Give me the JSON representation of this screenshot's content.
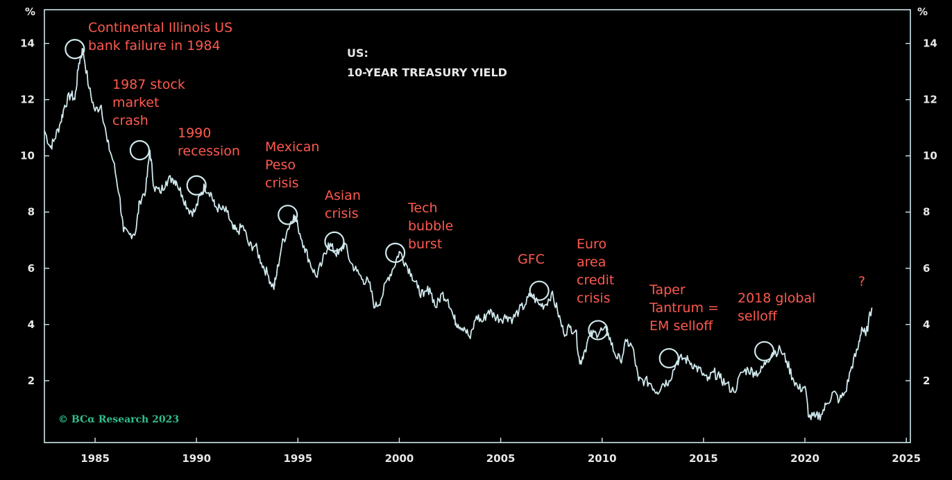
{
  "colors": {
    "background": "#000000",
    "line": "#cfe8ec",
    "axis": "#cfe8ec",
    "annotation": "#ff5a4f",
    "credit": "#2fbf8f",
    "text": "#e8e8e8"
  },
  "chart_data": {
    "type": "line",
    "title": "US:",
    "subtitle": "10-YEAR TREASURY YIELD",
    "y_unit_left": "%",
    "y_unit_right": "%",
    "xlim": [
      1982.5,
      2025.2
    ],
    "ylim": [
      -0.2,
      15.2
    ],
    "x_ticks": [
      1985,
      1990,
      1995,
      2000,
      2005,
      2010,
      2015,
      2020,
      2025
    ],
    "y_ticks": [
      2,
      4,
      6,
      8,
      10,
      12,
      14
    ],
    "grid": false,
    "legend": "none",
    "credit": "© BCα Research 2023",
    "series": [
      {
        "x": [
          1982.5,
          1982.8,
          1983.0,
          1983.3,
          1983.5,
          1983.8,
          1984.0,
          1984.2,
          1984.4,
          1984.7,
          1985.0,
          1985.3,
          1985.6,
          1985.9,
          1986.2,
          1986.4,
          1986.7,
          1987.0,
          1987.2,
          1987.5,
          1987.7,
          1987.9,
          1988.2,
          1988.5,
          1988.8,
          1989.0,
          1989.3,
          1989.6,
          1989.9,
          1990.2,
          1990.4,
          1990.7,
          1990.9,
          1991.2,
          1991.5,
          1991.8,
          1992.0,
          1992.3,
          1992.6,
          1992.9,
          1993.2,
          1993.5,
          1993.8,
          1993.9,
          1994.2,
          1994.5,
          1994.8,
          1995.0,
          1995.3,
          1995.6,
          1995.9,
          1996.2,
          1996.5,
          1996.8,
          1997.0,
          1997.3,
          1997.6,
          1997.9,
          1998.2,
          1998.5,
          1998.8,
          1999.1,
          1999.4,
          1999.7,
          2000.0,
          2000.3,
          2000.6,
          2000.9,
          2001.2,
          2001.5,
          2001.8,
          2002.1,
          2002.4,
          2002.7,
          2002.9,
          2003.2,
          2003.5,
          2003.8,
          2004.1,
          2004.4,
          2004.7,
          2005.0,
          2005.3,
          2005.6,
          2005.9,
          2006.2,
          2006.5,
          2006.9,
          2007.2,
          2007.5,
          2007.8,
          2008.1,
          2008.4,
          2008.7,
          2008.9,
          2009.1,
          2009.4,
          2009.7,
          2010.0,
          2010.3,
          2010.6,
          2010.9,
          2011.2,
          2011.5,
          2011.8,
          2012.1,
          2012.4,
          2012.7,
          2013.0,
          2013.3,
          2013.7,
          2014.0,
          2014.3,
          2014.6,
          2014.9,
          2015.2,
          2015.5,
          2015.8,
          2016.1,
          2016.5,
          2016.9,
          2017.2,
          2017.5,
          2017.8,
          2018.1,
          2018.4,
          2018.8,
          2019.1,
          2019.4,
          2019.7,
          2020.0,
          2020.2,
          2020.5,
          2020.8,
          2021.1,
          2021.4,
          2021.7,
          2022.0,
          2022.3,
          2022.6,
          2022.8,
          2023.0,
          2023.3
        ],
        "y": [
          10.9,
          10.3,
          10.6,
          11.2,
          11.8,
          12.2,
          12.0,
          13.3,
          13.8,
          12.4,
          11.6,
          11.8,
          10.5,
          9.8,
          8.6,
          7.3,
          7.2,
          7.3,
          8.4,
          8.8,
          10.2,
          8.9,
          8.7,
          9.1,
          9.2,
          9.1,
          8.6,
          8.1,
          8.0,
          8.6,
          8.9,
          8.7,
          8.2,
          8.1,
          8.0,
          7.4,
          7.3,
          7.5,
          6.8,
          6.8,
          6.2,
          5.8,
          5.3,
          5.6,
          6.8,
          7.4,
          7.9,
          7.5,
          6.8,
          6.2,
          5.7,
          6.2,
          6.9,
          6.6,
          6.5,
          6.9,
          6.2,
          5.9,
          5.6,
          5.5,
          4.6,
          4.9,
          5.6,
          6.0,
          6.6,
          6.2,
          5.8,
          5.3,
          5.0,
          5.3,
          4.6,
          5.1,
          4.9,
          4.2,
          4.0,
          3.9,
          3.5,
          4.3,
          4.1,
          4.5,
          4.3,
          4.2,
          4.3,
          4.2,
          4.5,
          4.7,
          5.1,
          4.7,
          4.7,
          5.1,
          4.5,
          3.7,
          3.9,
          3.8,
          2.6,
          3.0,
          3.6,
          3.7,
          3.8,
          3.7,
          3.0,
          2.7,
          3.4,
          3.2,
          2.0,
          2.0,
          1.9,
          1.6,
          1.9,
          2.0,
          2.7,
          2.8,
          2.7,
          2.5,
          2.3,
          2.0,
          2.3,
          2.1,
          1.9,
          1.6,
          2.3,
          2.4,
          2.3,
          2.3,
          2.7,
          3.0,
          3.1,
          2.7,
          2.1,
          1.7,
          1.8,
          0.7,
          0.7,
          0.8,
          1.2,
          1.6,
          1.3,
          1.6,
          2.5,
          3.1,
          3.9,
          3.6,
          4.6
        ]
      }
    ],
    "annotations": [
      {
        "lines": [
          "Continental Illinois US",
          "bank failure in 1984"
        ],
        "year": 1984.0,
        "value": 13.8
      },
      {
        "lines": [
          "1987 stock",
          "market",
          "crash"
        ],
        "year": 1987.2,
        "value": 10.2
      },
      {
        "lines": [
          "1990",
          "recession"
        ],
        "year": 1990.0,
        "value": 8.95
      },
      {
        "lines": [
          "Mexican",
          "Peso",
          "crisis"
        ],
        "year": 1994.5,
        "value": 7.9
      },
      {
        "lines": [
          "Asian",
          "crisis"
        ],
        "year": 1996.8,
        "value": 6.95
      },
      {
        "lines": [
          "Tech",
          "bubble",
          "burst"
        ],
        "year": 1999.8,
        "value": 6.55
      },
      {
        "lines": [
          "GFC"
        ],
        "year": 2006.9,
        "value": 5.2
      },
      {
        "lines": [
          "Euro",
          "area",
          "credit",
          "crisis"
        ],
        "year": 2009.8,
        "value": 3.8
      },
      {
        "lines": [
          "Taper",
          "Tantrum =",
          "EM selloff"
        ],
        "year": 2013.3,
        "value": 2.8
      },
      {
        "lines": [
          "2018 global",
          "selloff"
        ],
        "year": 2018.0,
        "value": 3.05
      },
      {
        "lines": [
          "?"
        ],
        "year": null,
        "value": null
      }
    ]
  }
}
